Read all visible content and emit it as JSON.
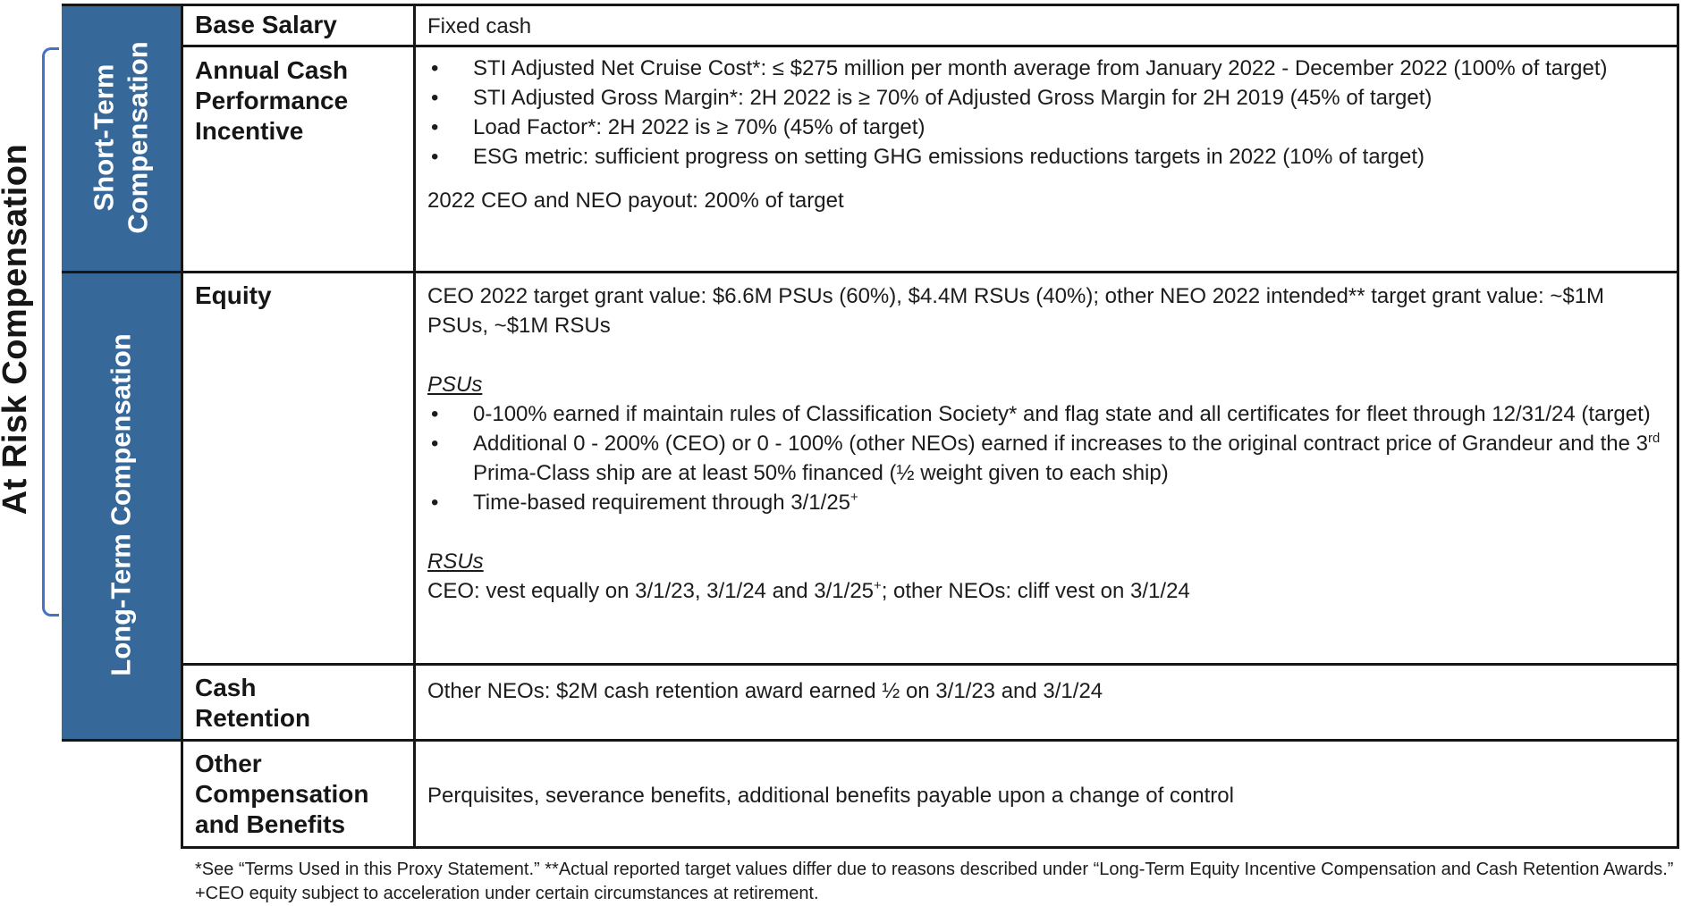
{
  "title": {
    "at_risk": "At Risk Compensation"
  },
  "bands": {
    "short_term_lines": [
      "Short-Term",
      "Compensation"
    ],
    "long_term": "Long-Term Compensation"
  },
  "colors": {
    "band_blue": "#36689a",
    "bracket_blue": "#4472c4",
    "border_black": "#161616"
  },
  "rows": {
    "base_salary": {
      "label": "Base Salary",
      "content": "Fixed cash"
    },
    "annual_cash_performance_incentive": {
      "label_lines": [
        "Annual Cash",
        "Performance",
        "Incentive"
      ],
      "bullets": [
        "STI Adjusted Net Cruise Cost*: ≤ $275 million per month average from January 2022 - December 2022 (100% of target)",
        "STI Adjusted Gross Margin*: 2H 2022 is ≥ 70% of Adjusted Gross Margin for 2H 2019 (45% of target)",
        "Load Factor*: 2H 2022 is ≥ 70% (45% of target)",
        "ESG metric: sufficient progress on setting GHG emissions reductions targets in 2022 (10% of target)"
      ],
      "payout": "2022 CEO and NEO payout: 200% of target"
    },
    "equity": {
      "label": "Equity",
      "intro": "CEO 2022 target grant value: $6.6M PSUs (60%), $4.4M RSUs (40%); other NEO 2022 intended** target grant value: ~$1M PSUs, ~$1M RSUs",
      "psus": {
        "heading": "PSUs",
        "bullet_1": "0-100% earned if maintain rules of Classification Society* and flag state and all certificates for fleet through 12/31/24 (target)",
        "bullet_2": [
          {
            "t": "Additional 0 - 200% (CEO) or 0 - 100% (other NEOs) earned if increases to the original contract price of Grandeur and the 3",
            "sup": false
          },
          {
            "t": "rd",
            "sup": true
          },
          {
            "t": " Prima-Class ship are at least 50% financed (½ weight given to each ship)",
            "sup": false
          }
        ],
        "bullet_3": [
          {
            "t": "Time-based requirement through 3/1/25",
            "sup": false
          },
          {
            "t": "+",
            "sup": true
          }
        ]
      },
      "rsus": {
        "heading": "RSUs",
        "vesting": [
          {
            "t": "CEO: vest equally on 3/1/23, 3/1/24 and 3/1/25",
            "sup": false
          },
          {
            "t": "+",
            "sup": true
          },
          {
            "t": "; other NEOs: cliff vest on 3/1/24",
            "sup": false
          }
        ]
      }
    },
    "cash_retention": {
      "label_lines": [
        "Cash",
        "Retention"
      ],
      "content": "Other NEOs: $2M cash retention award earned ½ on 3/1/23 and 3/1/24"
    },
    "other_compensation_and_benefits": {
      "label_lines": [
        "Other",
        "Compensation",
        "and Benefits"
      ],
      "content": "Perquisites, severance benefits, additional benefits payable upon a change of control"
    }
  },
  "footnotes": [
    "*See “Terms Used in this Proxy Statement.” **Actual reported target values differ due to reasons described under “Long-Term Equity Incentive Compensation and Cash Retention Awards.”",
    "+CEO equity subject to acceleration under certain circumstances at retirement."
  ]
}
